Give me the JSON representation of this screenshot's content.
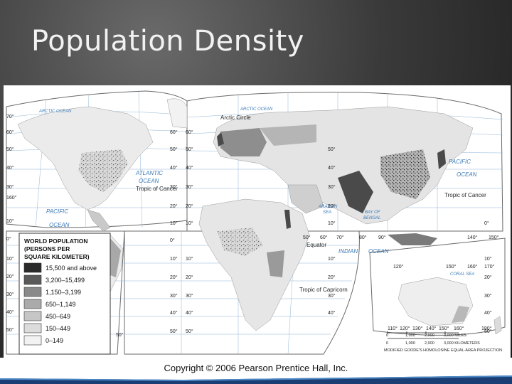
{
  "slide": {
    "title": "Population Density"
  },
  "map": {
    "oceans": {
      "arctic_west": "ARCTIC OCEAN",
      "arctic_east": "ARCTIC OCEAN",
      "atlantic_1": "ATLANTIC",
      "atlantic_2": "OCEAN",
      "pacific_east_1": "PACIFIC",
      "pacific_east_2": "OCEAN",
      "pacific_west_1": "PACIFIC",
      "pacific_west_2": "OCEAN",
      "arabian_1": "ARABIAN",
      "arabian_2": "SEA",
      "bengal_1": "BAY OF",
      "bengal_2": "BENGAL",
      "indian_1": "INDIAN",
      "indian_2": "OCEAN",
      "coral": "CORAL SEA"
    },
    "lines": {
      "arctic_circle": "Arctic Circle",
      "tropic_cancer_west": "Tropic of Cancer",
      "tropic_cancer_east": "Tropic of Cancer",
      "equator": "Equator",
      "tropic_capricorn": "Tropic of Capricorn"
    },
    "left_lat_labels": [
      "70°",
      "60°",
      "50°",
      "40°",
      "30°",
      "160°",
      "10°",
      "0°",
      "10°",
      "20°",
      "30°",
      "40°",
      "50°"
    ],
    "mid_lat_labels_a": [
      "60°",
      "50°",
      "40°",
      "30°",
      "20°",
      "10°",
      "0°",
      "10°",
      "20°",
      "30°",
      "40°",
      "50°"
    ],
    "mid_lat_labels_b": [
      "60°",
      "50°",
      "40°",
      "30°",
      "20°",
      "10°",
      "10°",
      "20°",
      "30°",
      "40°",
      "50°"
    ],
    "right_lat_labels": [
      "50°",
      "40°",
      "30°",
      "20°",
      "10°",
      "10°",
      "20°",
      "30°",
      "40°"
    ],
    "right_lat_labels_2": [
      "0°",
      "10°",
      "20°",
      "30°",
      "40°",
      "50°"
    ],
    "lon_labels_equator": [
      "50°",
      "60°",
      "70°",
      "80°",
      "90°",
      "140°",
      "150°"
    ],
    "lon_labels_tropic": [
      "120°",
      "150°",
      "160°",
      "170°"
    ],
    "lon_labels_bottom": [
      "110°",
      "120°",
      "130°",
      "140°",
      "150°",
      "160°",
      "180°"
    ],
    "left_bottom_lon": "50°",
    "land_color": "#ececec",
    "ocean_color": "#ffffff",
    "grid_color": "#8fb5d6"
  },
  "legend": {
    "title_lines": [
      "WORLD POPULATION",
      "(PERSONS PER",
      "SQUARE KILOMETER)"
    ],
    "items": [
      {
        "label": "15,500 and above",
        "color": "#2a2a2a"
      },
      {
        "label": "3,200–15,499",
        "color": "#5a5a5a"
      },
      {
        "label": "1,150–3,199",
        "color": "#8a8a8a"
      },
      {
        "label": "650–1,149",
        "color": "#aaaaaa"
      },
      {
        "label": "450–649",
        "color": "#c6c6c6"
      },
      {
        "label": "150–449",
        "color": "#dcdcdc"
      },
      {
        "label": "0–149",
        "color": "#f2f2f2"
      }
    ]
  },
  "scale": {
    "ticks_miles": [
      "0",
      "1,000",
      "2,000",
      "3,000 MILES"
    ],
    "ticks_km": [
      "0",
      "1,000",
      "2,000",
      "3,000 KILOMETERS"
    ],
    "projection": "MODIFIED GOODE'S HOMOLOSINE EQUAL-AREA PROJECTION"
  },
  "footer": {
    "copyright": "Copyright © 2006 Pearson Prentice Hall, Inc."
  }
}
